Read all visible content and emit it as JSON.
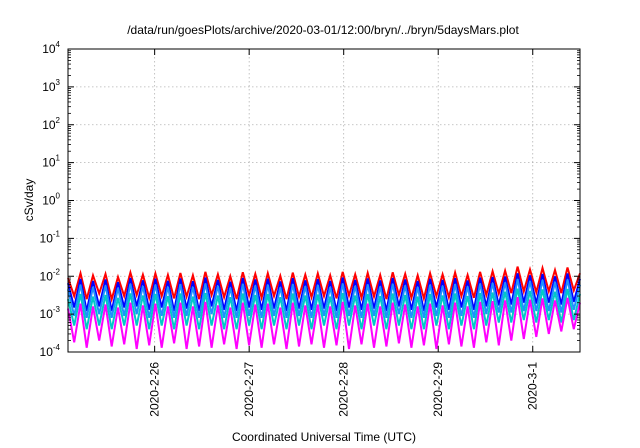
{
  "chart_data": {
    "type": "line",
    "title": "/data/run/goesPlots/archive/2020-03-01/12:00/bryn/../bryn/5daysMars.plot",
    "xlabel": "Coordinated Universal Time (UTC)",
    "ylabel": "cSv/day",
    "yscale": "log",
    "ylim": [
      0.0001,
      10000
    ],
    "xlim": [
      "2020-02-25T02:00",
      "2020-03-01T12:00"
    ],
    "y_ticks": [
      {
        "base": "10",
        "exp": "-4",
        "value": 0.0001
      },
      {
        "base": "10",
        "exp": "-3",
        "value": 0.001
      },
      {
        "base": "10",
        "exp": "-2",
        "value": 0.01
      },
      {
        "base": "10",
        "exp": "-1",
        "value": 0.1
      },
      {
        "base": "10",
        "exp": "0",
        "value": 1
      },
      {
        "base": "10",
        "exp": "1",
        "value": 10
      },
      {
        "base": "10",
        "exp": "2",
        "value": 100
      },
      {
        "base": "10",
        "exp": "3",
        "value": 1000
      },
      {
        "base": "10",
        "exp": "4",
        "value": 10000
      }
    ],
    "x_ticks": [
      {
        "label": "2020-2-26",
        "t": "2020-02-26T00:00"
      },
      {
        "label": "2020-2-27",
        "t": "2020-02-27T00:00"
      },
      {
        "label": "2020-2-28",
        "t": "2020-02-28T00:00"
      },
      {
        "label": "2020-2-29",
        "t": "2020-02-29T00:00"
      },
      {
        "label": "2020-3-1",
        "t": "2020-03-01T00:00"
      }
    ],
    "grid": true,
    "legend": "none",
    "series": [
      {
        "color": "#ff0000",
        "values": [
          0.009,
          0.003,
          0.012,
          0.0025,
          0.0105,
          0.0035,
          0.0115,
          0.0025,
          0.0095,
          0.003,
          0.0125,
          0.0032,
          0.011,
          0.0027,
          0.0118,
          0.003,
          0.0108,
          0.0026,
          0.0122,
          0.0029,
          0.0105,
          0.0025,
          0.013,
          0.0032,
          0.0112,
          0.0028,
          0.01,
          0.0025,
          0.0128,
          0.0031,
          0.0115,
          0.0027,
          0.012,
          0.003,
          0.0102,
          0.0025,
          0.0125,
          0.0029,
          0.011,
          0.0028,
          0.0118,
          0.003,
          0.0105,
          0.0026,
          0.013,
          0.0031,
          0.0112,
          0.0027,
          0.0122,
          0.0029,
          0.0108,
          0.0025,
          0.0127,
          0.0032,
          0.0115,
          0.0027,
          0.0105,
          0.0026,
          0.012,
          0.003,
          0.0112,
          0.0028,
          0.0125,
          0.003,
          0.0108,
          0.0027,
          0.013,
          0.0032,
          0.0135,
          0.0035,
          0.014,
          0.0036,
          0.018,
          0.004,
          0.015,
          0.0038,
          0.0165,
          0.004,
          0.0145,
          0.0036,
          0.017,
          0.0042,
          0.012
        ]
      },
      {
        "color": "#0000ff",
        "values": [
          0.0065,
          0.0015,
          0.0085,
          0.0012,
          0.0075,
          0.0016,
          0.0082,
          0.0012,
          0.007,
          0.0015,
          0.009,
          0.0016,
          0.0078,
          0.0013,
          0.0086,
          0.0015,
          0.0076,
          0.0012,
          0.0088,
          0.0014,
          0.0074,
          0.0012,
          0.0092,
          0.0016,
          0.008,
          0.0013,
          0.0072,
          0.0012,
          0.009,
          0.0015,
          0.0082,
          0.0013,
          0.0086,
          0.0014,
          0.0073,
          0.0012,
          0.0089,
          0.0014,
          0.0078,
          0.0013,
          0.0084,
          0.0014,
          0.0075,
          0.0012,
          0.0092,
          0.0015,
          0.008,
          0.0013,
          0.0087,
          0.0014,
          0.0077,
          0.0012,
          0.009,
          0.0016,
          0.0082,
          0.0013,
          0.0075,
          0.0012,
          0.0086,
          0.0015,
          0.008,
          0.0013,
          0.0089,
          0.0015,
          0.0077,
          0.0013,
          0.0092,
          0.0016,
          0.0095,
          0.0017,
          0.0098,
          0.0018,
          0.012,
          0.002,
          0.0105,
          0.0019,
          0.0115,
          0.002,
          0.01,
          0.0018,
          0.0118,
          0.0021,
          0.0085
        ]
      },
      {
        "color": "#1e90ff",
        "values": [
          0.0045,
          0.0009,
          0.006,
          0.0008,
          0.0052,
          0.001,
          0.0057,
          0.0008,
          0.0049,
          0.0009,
          0.0063,
          0.001,
          0.0055,
          0.0008,
          0.006,
          0.0009,
          0.0053,
          0.0008,
          0.0062,
          0.0009,
          0.0052,
          0.0008,
          0.0064,
          0.001,
          0.0056,
          0.0008,
          0.005,
          0.0008,
          0.0063,
          0.0009,
          0.0057,
          0.0008,
          0.006,
          0.0009,
          0.0051,
          0.0008,
          0.0062,
          0.0009,
          0.0055,
          0.0008,
          0.0059,
          0.0009,
          0.0052,
          0.0008,
          0.0064,
          0.0009,
          0.0056,
          0.0008,
          0.0061,
          0.0009,
          0.0054,
          0.0008,
          0.0063,
          0.001,
          0.0057,
          0.0008,
          0.0052,
          0.0008,
          0.006,
          0.0009,
          0.0056,
          0.0008,
          0.0062,
          0.0009,
          0.0054,
          0.0008,
          0.0064,
          0.001,
          0.0066,
          0.0011,
          0.0069,
          0.0011,
          0.0084,
          0.0012,
          0.0074,
          0.0012,
          0.008,
          0.0012,
          0.007,
          0.0011,
          0.0082,
          0.0013,
          0.006
        ]
      },
      {
        "color": "#00c8c8",
        "values": [
          0.0025,
          0.0005,
          0.0034,
          0.0004,
          0.0029,
          0.0005,
          0.0032,
          0.0004,
          0.0027,
          0.0005,
          0.0035,
          0.0005,
          0.0031,
          0.0004,
          0.0034,
          0.0005,
          0.003,
          0.0004,
          0.0035,
          0.0005,
          0.0029,
          0.0004,
          0.0036,
          0.0005,
          0.0031,
          0.0004,
          0.0028,
          0.0004,
          0.0035,
          0.0005,
          0.0032,
          0.0004,
          0.0034,
          0.0005,
          0.0028,
          0.0004,
          0.0035,
          0.0005,
          0.0031,
          0.0004,
          0.0033,
          0.0005,
          0.0029,
          0.0004,
          0.0036,
          0.0005,
          0.0031,
          0.0004,
          0.0034,
          0.0005,
          0.003,
          0.0004,
          0.0035,
          0.0005,
          0.0032,
          0.0004,
          0.0029,
          0.0004,
          0.0034,
          0.0005,
          0.0031,
          0.0004,
          0.0035,
          0.0005,
          0.003,
          0.0004,
          0.0036,
          0.0005,
          0.0037,
          0.0006,
          0.0039,
          0.0006,
          0.0047,
          0.0007,
          0.0041,
          0.0006,
          0.0045,
          0.0007,
          0.0039,
          0.0006,
          0.0046,
          0.0007,
          0.0034
        ]
      },
      {
        "color": "#ff00ff",
        "values": [
          0.0014,
          0.00018,
          0.0019,
          0.00013,
          0.0016,
          0.0002,
          0.0018,
          0.00014,
          0.0015,
          0.00016,
          0.002,
          0.00012,
          0.0017,
          0.00015,
          0.0019,
          0.00013,
          0.0016,
          0.00017,
          0.002,
          0.00012,
          0.0016,
          0.00014,
          0.0021,
          0.00013,
          0.0017,
          0.00016,
          0.0015,
          0.00012,
          0.002,
          0.00015,
          0.0018,
          0.00013,
          0.0019,
          0.00016,
          0.0015,
          0.00012,
          0.002,
          0.00014,
          0.0017,
          0.00016,
          0.0018,
          0.00013,
          0.0016,
          0.00015,
          0.0021,
          0.00012,
          0.0017,
          0.00016,
          0.0019,
          0.00013,
          0.0016,
          0.00014,
          0.002,
          0.00017,
          0.0018,
          0.00013,
          0.0016,
          0.00015,
          0.0019,
          0.00012,
          0.0017,
          0.00016,
          0.002,
          0.00014,
          0.0016,
          0.00013,
          0.0021,
          0.00018,
          0.0022,
          0.00015,
          0.0023,
          0.0002,
          0.0028,
          0.00022,
          0.0024,
          0.00025,
          0.0026,
          0.0003,
          0.0023,
          0.00035,
          0.0027,
          0.0004,
          0.002
        ]
      }
    ]
  }
}
